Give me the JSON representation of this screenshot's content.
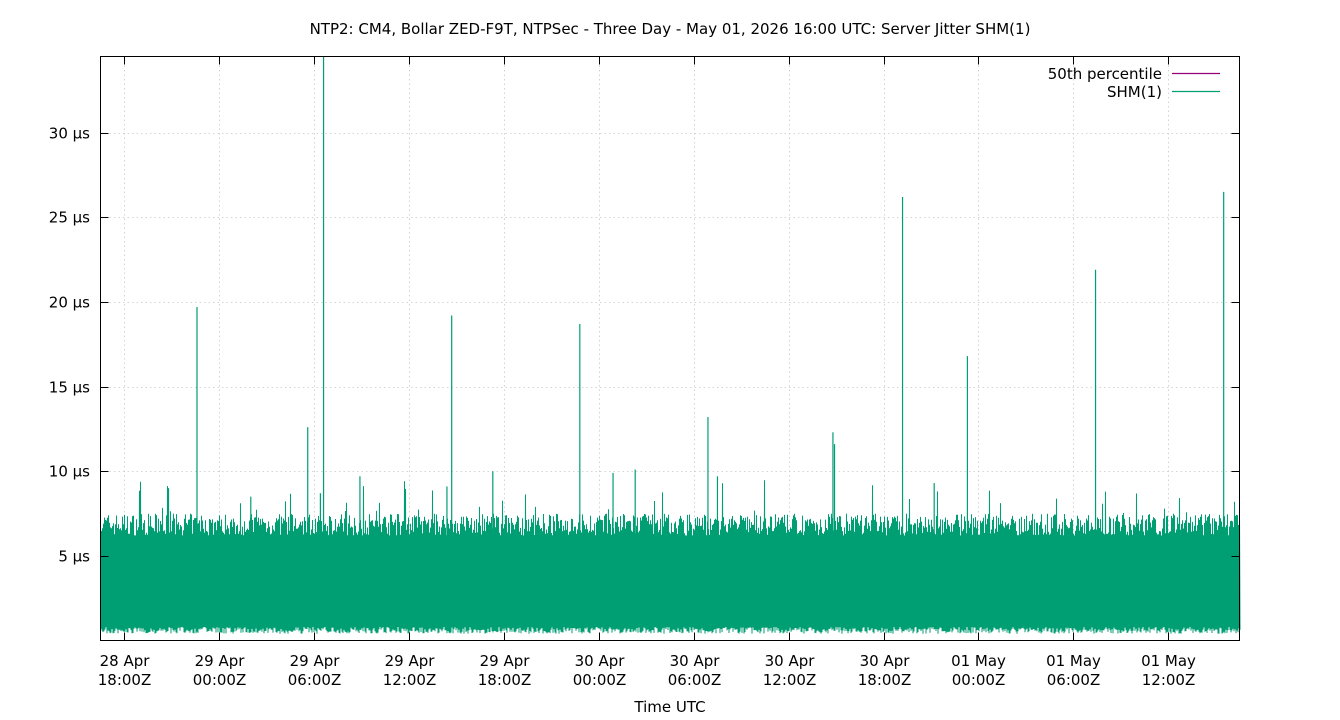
{
  "chart_data": {
    "type": "line",
    "title": "NTP2: CM4, Bollar ZED-F9T, NTPSec - Three Day - May 01, 2026 16:00 UTC: Server Jitter SHM(1)",
    "xlabel": "Time UTC",
    "ylabel": "",
    "xlim_hours": [
      -1.5,
      70.5
    ],
    "ylim": [
      0,
      34.5
    ],
    "y_ticks": [
      {
        "value": 5,
        "label": "5 µs"
      },
      {
        "value": 10,
        "label": "10 µs"
      },
      {
        "value": 15,
        "label": "15 µs"
      },
      {
        "value": 20,
        "label": "20 µs"
      },
      {
        "value": 25,
        "label": "25 µs"
      },
      {
        "value": 30,
        "label": "30 µs"
      }
    ],
    "x_ticks": [
      {
        "hour": 0,
        "line1": "28 Apr",
        "line2": "18:00Z"
      },
      {
        "hour": 6,
        "line1": "29 Apr",
        "line2": "00:00Z"
      },
      {
        "hour": 12,
        "line1": "29 Apr",
        "line2": "06:00Z"
      },
      {
        "hour": 18,
        "line1": "29 Apr",
        "line2": "12:00Z"
      },
      {
        "hour": 24,
        "line1": "29 Apr",
        "line2": "18:00Z"
      },
      {
        "hour": 30,
        "line1": "30 Apr",
        "line2": "00:00Z"
      },
      {
        "hour": 36,
        "line1": "30 Apr",
        "line2": "06:00Z"
      },
      {
        "hour": 42,
        "line1": "30 Apr",
        "line2": "12:00Z"
      },
      {
        "hour": 48,
        "line1": "30 Apr",
        "line2": "18:00Z"
      },
      {
        "hour": 54,
        "line1": "01 May",
        "line2": "00:00Z"
      },
      {
        "hour": 60,
        "line1": "01 May",
        "line2": "06:00Z"
      },
      {
        "hour": 66,
        "line1": "01 May",
        "line2": "12:00Z"
      }
    ],
    "grid": true,
    "legend_placement": "top-right",
    "series": [
      {
        "name": "50th percentile",
        "color": "#94007a",
        "values": []
      },
      {
        "name": "SHM(1)",
        "color": "#009e73",
        "band_low": 0.8,
        "band_high": 6.2,
        "peaks": [
          {
            "x_hour": 2.8,
            "y": 9.0
          },
          {
            "x_hour": 4.6,
            "y": 19.7
          },
          {
            "x_hour": 8.0,
            "y": 8.5
          },
          {
            "x_hour": 11.6,
            "y": 12.6
          },
          {
            "x_hour": 12.4,
            "y": 8.7
          },
          {
            "x_hour": 12.6,
            "y": 34.5
          },
          {
            "x_hour": 14.9,
            "y": 9.7
          },
          {
            "x_hour": 20.4,
            "y": 9.1
          },
          {
            "x_hour": 20.7,
            "y": 19.2
          },
          {
            "x_hour": 23.3,
            "y": 10.0
          },
          {
            "x_hour": 28.8,
            "y": 18.7
          },
          {
            "x_hour": 30.9,
            "y": 9.9
          },
          {
            "x_hour": 32.3,
            "y": 10.1
          },
          {
            "x_hour": 36.9,
            "y": 13.2
          },
          {
            "x_hour": 37.5,
            "y": 9.7
          },
          {
            "x_hour": 44.8,
            "y": 12.3
          },
          {
            "x_hour": 44.9,
            "y": 11.6
          },
          {
            "x_hour": 49.2,
            "y": 26.2
          },
          {
            "x_hour": 51.2,
            "y": 9.3
          },
          {
            "x_hour": 53.3,
            "y": 16.8
          },
          {
            "x_hour": 61.4,
            "y": 21.9
          },
          {
            "x_hour": 69.5,
            "y": 26.5
          }
        ]
      }
    ]
  }
}
